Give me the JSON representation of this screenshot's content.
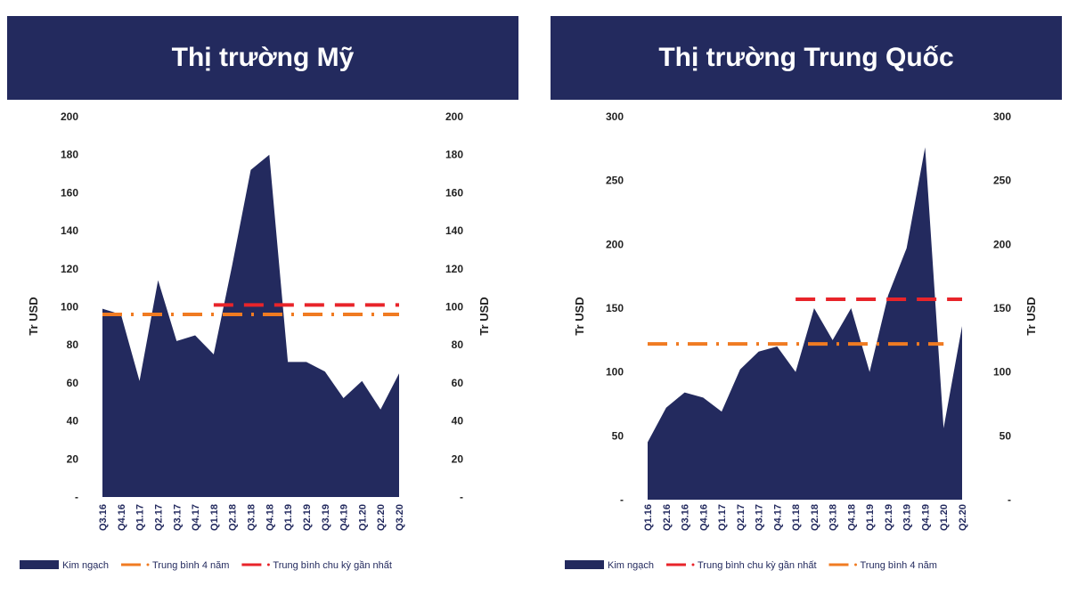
{
  "chart_data": [
    {
      "type": "area",
      "title": "Thị trường Mỹ",
      "ylabel": "Tr USD",
      "ylim": [
        0,
        200
      ],
      "yticks": [
        "-",
        "20",
        "40",
        "60",
        "80",
        "100",
        "120",
        "140",
        "160",
        "180",
        "200"
      ],
      "categories": [
        "Q3.16",
        "Q4.16",
        "Q1.17",
        "Q2.17",
        "Q3.17",
        "Q4.17",
        "Q1.18",
        "Q2.18",
        "Q3.18",
        "Q4.18",
        "Q1.19",
        "Q2.19",
        "Q3.19",
        "Q4.19",
        "Q1.20",
        "Q2.20",
        "Q3.20"
      ],
      "series": [
        {
          "name": "Kim ngạch",
          "kind": "area",
          "color": "#232a5e",
          "values": [
            99,
            96,
            61,
            114,
            82,
            85,
            75,
            122,
            172,
            180,
            71,
            71,
            66,
            52,
            61,
            46,
            65
          ]
        },
        {
          "name": "Trung bình 4 năm",
          "kind": "dashdot",
          "color": "#f07b22",
          "value": 96,
          "from": 0,
          "to": 16
        },
        {
          "name": "Trung bình chu kỳ gần nhất",
          "kind": "dash",
          "color": "#e8242a",
          "value": 101,
          "from": 6,
          "to": 16
        }
      ],
      "legend_order": [
        0,
        1,
        2
      ],
      "legend": "bottom"
    },
    {
      "type": "area",
      "title": "Thị trường Trung Quốc",
      "ylabel": "Tr USD",
      "ylim": [
        0,
        300
      ],
      "yticks": [
        "-",
        "50",
        "100",
        "150",
        "200",
        "250",
        "300"
      ],
      "categories": [
        "Q1.16",
        "Q2.16",
        "Q3.16",
        "Q4.16",
        "Q1.17",
        "Q2.17",
        "Q3.17",
        "Q4.17",
        "Q1.18",
        "Q2.18",
        "Q3.18",
        "Q4.18",
        "Q1.19",
        "Q2.19",
        "Q3.19",
        "Q4.19",
        "Q1.20",
        "Q2.20"
      ],
      "series": [
        {
          "name": "Kim ngạch",
          "kind": "area",
          "color": "#232a5e",
          "values": [
            45,
            72,
            84,
            80,
            69,
            102,
            116,
            120,
            100,
            150,
            125,
            150,
            100,
            160,
            197,
            276,
            56,
            136
          ]
        },
        {
          "name": "Trung bình 4 năm",
          "kind": "dashdot",
          "color": "#f07b22",
          "value": 122,
          "from": 0,
          "to": 16
        },
        {
          "name": "Trung bình chu kỳ gần nhất",
          "kind": "dash",
          "color": "#e8242a",
          "value": 157,
          "from": 8,
          "to": 17
        }
      ],
      "legend_order": [
        0,
        2,
        1
      ],
      "legend": "bottom"
    }
  ]
}
